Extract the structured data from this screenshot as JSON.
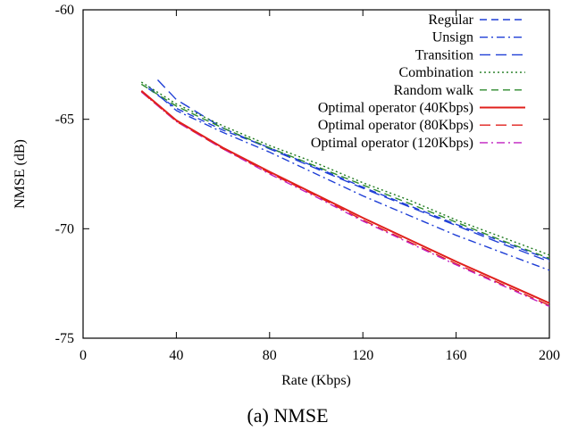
{
  "chart_data": {
    "type": "line",
    "title": "",
    "caption": "(a) NMSE",
    "xlabel": "Rate (Kbps)",
    "ylabel": "NMSE (dB)",
    "xlim": [
      0,
      200
    ],
    "ylim": [
      -75,
      -60
    ],
    "xticks": [
      0,
      40,
      80,
      120,
      160,
      200
    ],
    "yticks": [
      -60,
      -65,
      -70,
      -75
    ],
    "grid": false,
    "legend_position": "top-right",
    "series": [
      {
        "name": "Regular",
        "color": "#1f3fd6",
        "dash": "dashed",
        "x": [
          28,
          40,
          60,
          80,
          100,
          120,
          140,
          160,
          180,
          200
        ],
        "y": [
          -63.6,
          -64.5,
          -65.5,
          -66.3,
          -67.2,
          -68.1,
          -68.95,
          -69.8,
          -70.6,
          -71.4
        ]
      },
      {
        "name": "Unsign",
        "color": "#1f3fd6",
        "dash": "dashdot",
        "x": [
          28,
          40,
          60,
          80,
          100,
          120,
          140,
          160,
          180,
          200
        ],
        "y": [
          -63.5,
          -64.6,
          -65.6,
          -66.5,
          -67.5,
          -68.5,
          -69.4,
          -70.3,
          -71.1,
          -71.9
        ]
      },
      {
        "name": "Transition",
        "color": "#1f3fd6",
        "dash": "longdash",
        "x": [
          32,
          40,
          60,
          80,
          100,
          120,
          140,
          160,
          180,
          200
        ],
        "y": [
          -63.2,
          -64.1,
          -65.4,
          -66.35,
          -67.25,
          -68.15,
          -69.0,
          -69.85,
          -70.7,
          -71.5
        ]
      },
      {
        "name": "Combination",
        "color": "#1f7a1f",
        "dash": "dotted",
        "x": [
          25,
          40,
          60,
          80,
          100,
          120,
          140,
          160,
          180,
          200
        ],
        "y": [
          -63.3,
          -64.3,
          -65.3,
          -66.2,
          -67.0,
          -67.9,
          -68.7,
          -69.6,
          -70.4,
          -71.2
        ]
      },
      {
        "name": "Random walk",
        "color": "#2e8b2e",
        "dash": "dashed",
        "x": [
          25,
          40,
          60,
          80,
          100,
          120,
          140,
          160,
          180,
          200
        ],
        "y": [
          -63.4,
          -64.4,
          -65.4,
          -66.3,
          -67.15,
          -68.0,
          -68.85,
          -69.7,
          -70.55,
          -71.35
        ]
      },
      {
        "name": "Optimal operator (40Kbps)",
        "color": "#e0201c",
        "dash": "solid",
        "x": [
          25,
          40,
          60,
          80,
          100,
          120,
          140,
          160,
          180,
          200
        ],
        "y": [
          -63.7,
          -65.05,
          -66.3,
          -67.4,
          -68.45,
          -69.5,
          -70.5,
          -71.5,
          -72.45,
          -73.4
        ]
      },
      {
        "name": "Optimal operator (80Kbps)",
        "color": "#e0201c",
        "dash": "longdash",
        "x": [
          25,
          40,
          60,
          80,
          100,
          120,
          140,
          160,
          180,
          200
        ],
        "y": [
          -63.75,
          -65.1,
          -66.35,
          -67.45,
          -68.5,
          -69.6,
          -70.6,
          -71.6,
          -72.55,
          -73.5
        ]
      },
      {
        "name": "Optimal operator (120Kbps)",
        "color": "#c020c0",
        "dash": "dashdot",
        "x": [
          25,
          40,
          60,
          80,
          100,
          120,
          140,
          160,
          180,
          200
        ],
        "y": [
          -63.75,
          -65.1,
          -66.35,
          -67.5,
          -68.55,
          -69.65,
          -70.65,
          -71.65,
          -72.6,
          -73.55
        ]
      }
    ]
  }
}
